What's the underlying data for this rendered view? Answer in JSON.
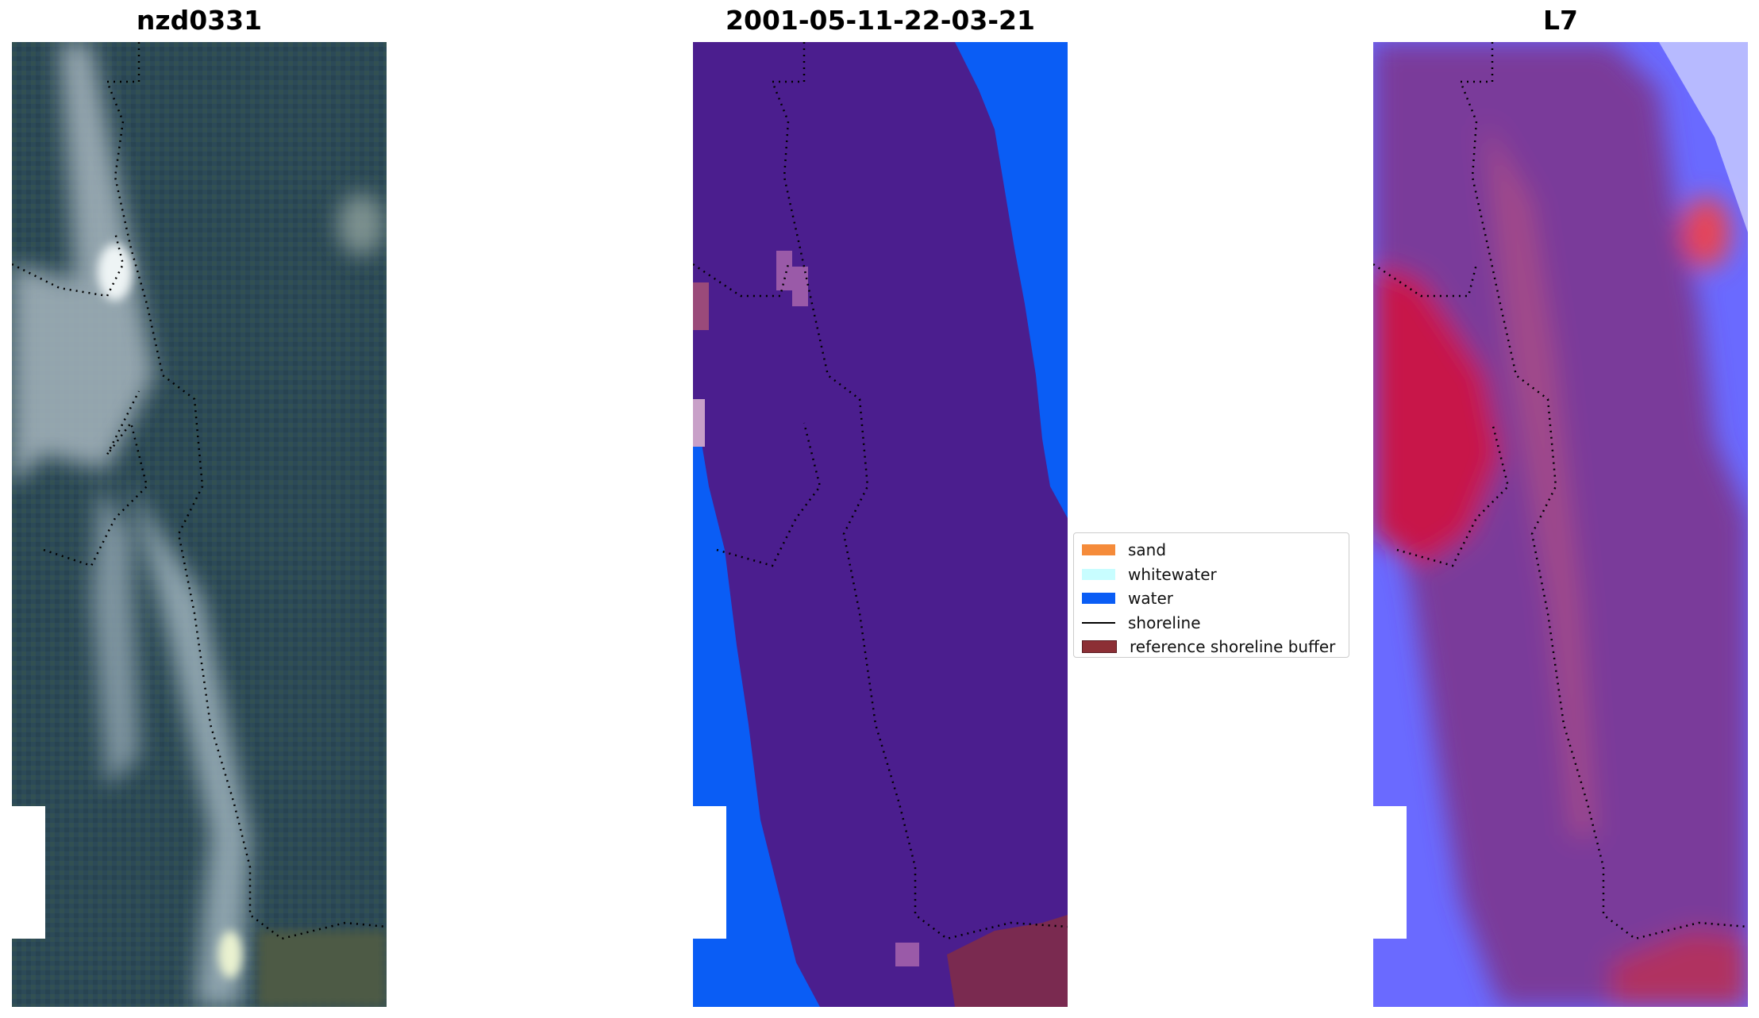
{
  "panels": [
    {
      "title": "nzd0331"
    },
    {
      "title": "2001-05-11-22-03-21"
    },
    {
      "title": "L7"
    }
  ],
  "legend": {
    "items": [
      {
        "label": "sand",
        "color": "#f58b3a",
        "kind": "patch"
      },
      {
        "label": "whitewater",
        "color": "#c8fdff",
        "kind": "patch"
      },
      {
        "label": "water",
        "color": "#0a5df5",
        "kind": "patch"
      },
      {
        "label": "shoreline",
        "color": "#000000",
        "kind": "line"
      },
      {
        "label": "reference shoreline buffer",
        "color": "#8c2f35",
        "kind": "patch"
      }
    ]
  },
  "colors": {
    "rgb_water": "#2c4a58",
    "class_buffer_purple": "#4b1e8e",
    "class_water": "#0a5df5",
    "index_purple": "#7a3a9a",
    "index_red": "#cc1133",
    "index_blue": "#4a66ff"
  }
}
